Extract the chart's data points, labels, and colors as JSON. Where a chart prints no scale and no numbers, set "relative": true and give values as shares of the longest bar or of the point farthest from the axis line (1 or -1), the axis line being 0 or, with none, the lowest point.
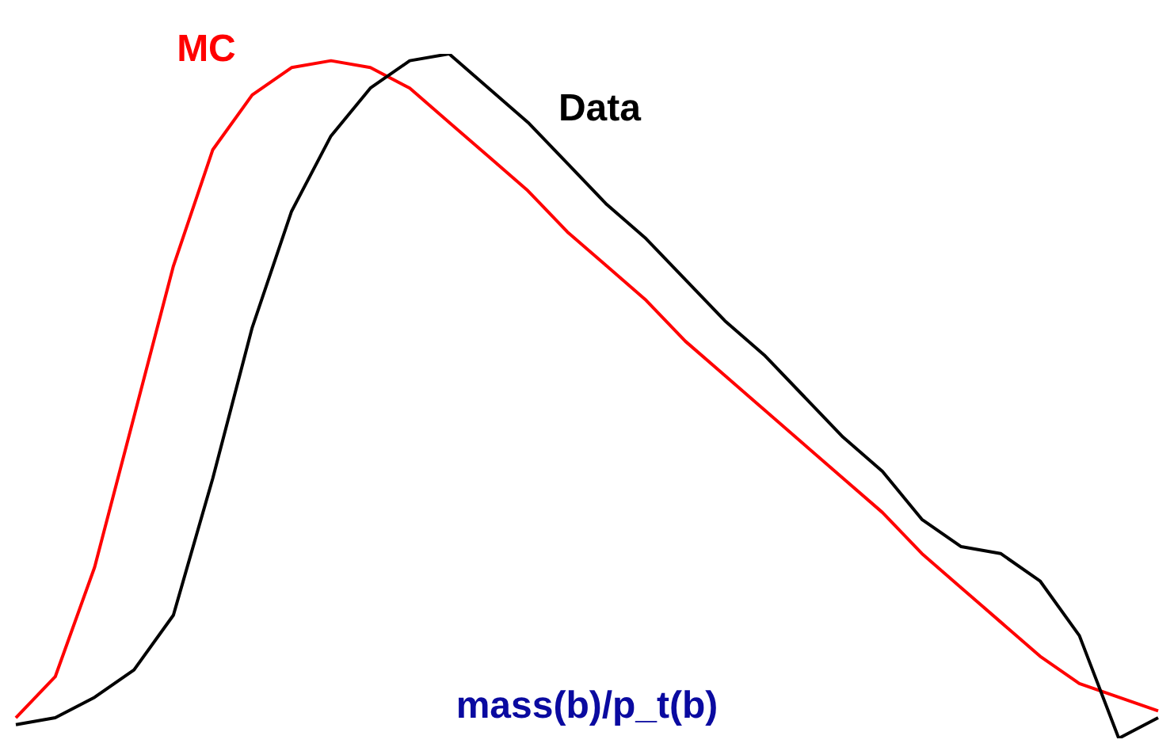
{
  "chart_data": {
    "type": "line",
    "xlabel": "mass(b)/p_t(b)",
    "relative": true,
    "categories": [
      null,
      null,
      null,
      null,
      null,
      null,
      null,
      null,
      null,
      null,
      null,
      null,
      null,
      null,
      null,
      null,
      null,
      null,
      null,
      null,
      null,
      null,
      null,
      null,
      null,
      null,
      null,
      null,
      null,
      null
    ],
    "series": [
      {
        "name": "MC",
        "color": "#ff0000",
        "values": [
          0.03,
          0.09,
          0.25,
          0.47,
          0.69,
          0.86,
          0.94,
          0.98,
          0.99,
          0.98,
          0.95,
          0.9,
          0.85,
          0.8,
          0.74,
          0.69,
          0.64,
          0.58,
          0.53,
          0.48,
          0.43,
          0.38,
          0.33,
          0.27,
          0.22,
          0.17,
          0.12,
          0.08,
          0.06,
          0.04
        ]
      },
      {
        "name": "Data",
        "color": "#000000",
        "values": [
          0.02,
          0.03,
          0.06,
          0.1,
          0.18,
          0.38,
          0.6,
          0.77,
          0.88,
          0.95,
          0.99,
          1,
          0.95,
          0.9,
          0.84,
          0.78,
          0.73,
          0.67,
          0.61,
          0.56,
          0.5,
          0.44,
          0.39,
          0.32,
          0.28,
          0.27,
          0.23,
          0.15,
          0,
          0.03
        ]
      }
    ]
  }
}
